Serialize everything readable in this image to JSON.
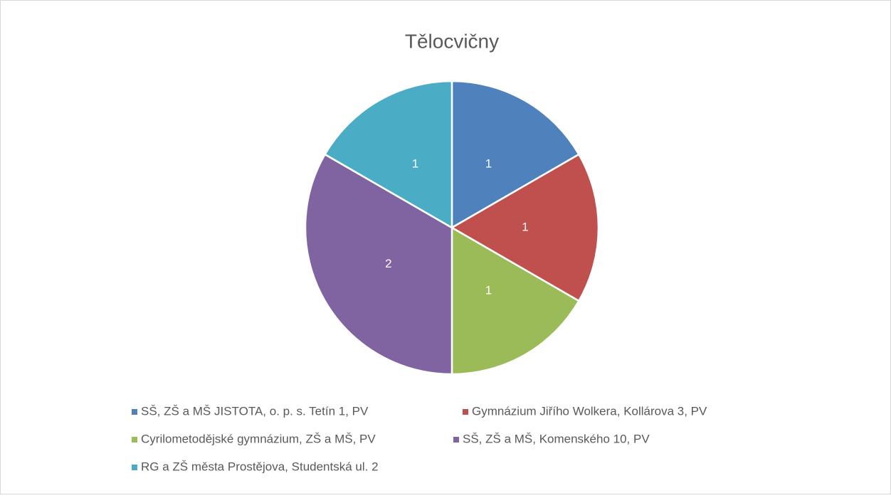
{
  "chart_data": {
    "type": "pie",
    "title": "Tělocvičny",
    "categories": [
      "SŠ, ZŠ a MŠ JISTOTA, o. p. s. Tetín 1, PV",
      "Gymnázium Jiřího Wolkera, Kollárova 3, PV",
      "Cyrilometodějské gymnázium, ZŠ a MŠ, PV",
      "SŠ, ZŠ a MŠ, Komenského 10, PV",
      "RG a ZŠ města Prostějova, Studentská ul. 2"
    ],
    "values": [
      1,
      1,
      1,
      2,
      1
    ],
    "colors": [
      "#4f81bd",
      "#c0504d",
      "#9bbb59",
      "#8064a2",
      "#4bacc6"
    ],
    "legend": "bottom"
  }
}
